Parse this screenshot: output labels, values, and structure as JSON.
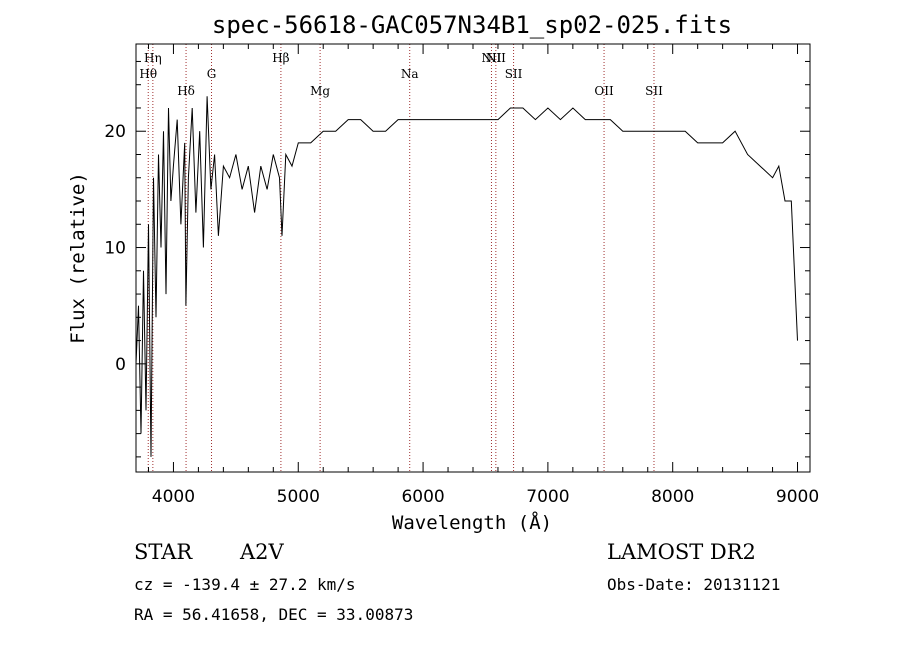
{
  "chart_data": {
    "type": "line",
    "title": "spec-56618-GAC057N34B1_sp02-025.fits",
    "xlabel": "Wavelength (Å)",
    "ylabel": "Flux (relative)",
    "xlim": [
      3700,
      9100
    ],
    "ylim": [
      -9.3,
      27.5
    ],
    "x_ticks": [
      4000,
      5000,
      6000,
      7000,
      8000,
      9000
    ],
    "y_ticks": [
      0,
      10,
      20
    ],
    "grid": false,
    "line_markers": [
      {
        "label": "Hη",
        "wavelength": 3835
      },
      {
        "label": "Hθ",
        "wavelength": 3798
      },
      {
        "label": "Hδ",
        "wavelength": 4101
      },
      {
        "label": "G",
        "wavelength": 4305
      },
      {
        "label": "Hβ",
        "wavelength": 4861
      },
      {
        "label": "Mg",
        "wavelength": 5175
      },
      {
        "label": "Na",
        "wavelength": 5893
      },
      {
        "label": "NII",
        "wavelength": 6548
      },
      {
        "label": "NII",
        "wavelength": 6583
      },
      {
        "label": "SII",
        "wavelength": 6725
      },
      {
        "label": "OII",
        "wavelength": 7450
      },
      {
        "label": "SII",
        "wavelength": 7850
      }
    ],
    "series": [
      {
        "x": [
          3700,
          3720,
          3740,
          3760,
          3780,
          3800,
          3820,
          3840,
          3860,
          3880,
          3900,
          3920,
          3940,
          3960,
          3980,
          4000,
          4030,
          4060,
          4090,
          4100,
          4120,
          4150,
          4180,
          4210,
          4240,
          4270,
          4300,
          4330,
          4360,
          4400,
          4450,
          4500,
          4550,
          4600,
          4650,
          4700,
          4750,
          4800,
          4850,
          4870,
          4900,
          4950,
          5000,
          5100,
          5200,
          5300,
          5400,
          5500,
          5600,
          5700,
          5800,
          5900,
          6000,
          6100,
          6200,
          6300,
          6400,
          6500,
          6560,
          6600,
          6700,
          6800,
          6900,
          7000,
          7100,
          7200,
          7300,
          7400,
          7500,
          7600,
          7700,
          7800,
          7900,
          8000,
          8100,
          8200,
          8300,
          8400,
          8500,
          8600,
          8700,
          8800,
          8850,
          8900,
          8950,
          9000
        ],
        "y": [
          0,
          5,
          -6,
          8,
          -4,
          12,
          -8,
          16,
          4,
          18,
          10,
          20,
          6,
          22,
          14,
          17,
          21,
          12,
          19,
          5,
          16,
          22,
          13,
          20,
          10,
          23,
          15,
          18,
          11,
          17,
          16,
          18,
          15,
          17,
          13,
          17,
          15,
          18,
          16,
          11,
          18,
          17,
          19,
          19,
          20,
          20,
          21,
          21,
          20,
          20,
          21,
          21,
          21,
          21,
          21,
          21,
          21,
          21,
          21,
          21,
          22,
          22,
          21,
          22,
          21,
          22,
          21,
          21,
          21,
          20,
          20,
          20,
          20,
          20,
          20,
          19,
          19,
          19,
          20,
          18,
          17,
          16,
          17,
          14,
          14,
          2
        ]
      }
    ]
  },
  "info": {
    "class": "STAR",
    "subclass": "A2V",
    "survey": "LAMOST DR2",
    "cz": "cz = -139.4 ± 27.2 km/s",
    "obs_date": "Obs-Date: 20131121",
    "radec": "RA =  56.41658, DEC =  33.00873"
  }
}
